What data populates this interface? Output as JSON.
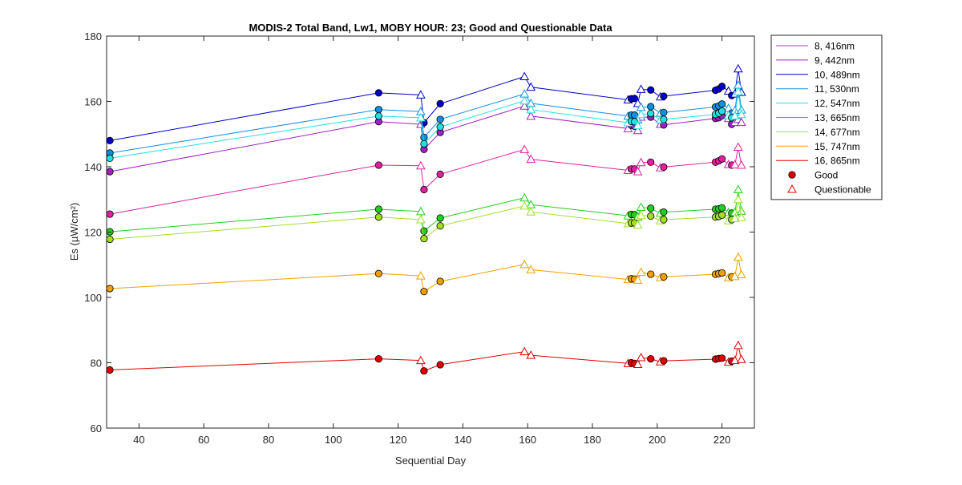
{
  "chart_data": {
    "type": "line",
    "title": "MODIS-2 Total Band,  Lw1, MOBY HOUR: 23;  Good and Questionable Data",
    "xlabel": "Sequential Day",
    "ylabel": "Es (µW/cm²)",
    "xlim": [
      30,
      230
    ],
    "ylim": [
      60,
      180
    ],
    "xticks": [
      40,
      60,
      80,
      100,
      120,
      140,
      160,
      180,
      200,
      220
    ],
    "yticks": [
      60,
      80,
      100,
      120,
      140,
      160,
      180
    ],
    "grid": false,
    "legend_position": "outside-right-top",
    "marker_legend": [
      {
        "label": "Good",
        "marker": "circle",
        "color": "#e00000"
      },
      {
        "label": "Questionable",
        "marker": "triangle",
        "color": "#e00000"
      }
    ],
    "x": [
      31,
      114,
      127,
      128,
      133,
      159,
      161,
      191,
      192,
      193,
      194,
      195,
      198,
      201,
      202,
      218,
      219,
      220,
      222,
      223,
      224,
      225,
      226
    ],
    "quality": [
      "G",
      "G",
      "Q",
      "G",
      "G",
      "Q",
      "Q",
      "Q",
      "G",
      "G",
      "Q",
      "Q",
      "G",
      "Q",
      "G",
      "G",
      "G",
      "G",
      "Q",
      "G",
      "Q",
      "Q",
      "Q"
    ],
    "series": [
      {
        "name": "8, 416nm",
        "color": "#e020a0",
        "values": [
          125.5,
          140.5,
          140.3,
          133.0,
          137.7,
          145.3,
          142.3,
          138.9,
          139.3,
          139.3,
          138.5,
          141.3,
          141.4,
          139.7,
          139.9,
          141.4,
          141.8,
          142.4,
          140.7,
          140.5,
          140.6,
          146.0,
          140.5
        ]
      },
      {
        "name": "9, 442nm",
        "color": "#a020c0",
        "values": [
          138.5,
          153.8,
          153.0,
          145.3,
          150.5,
          158.6,
          155.5,
          151.7,
          152.7,
          152.4,
          151.1,
          155.2,
          155.2,
          153.0,
          152.8,
          154.8,
          155.0,
          155.6,
          154.8,
          153.0,
          153.6,
          154.5,
          153.6
        ]
      },
      {
        "name": "10, 489nm",
        "color": "#0000c8",
        "values": [
          148.0,
          162.6,
          162.0,
          153.5,
          159.3,
          167.6,
          164.4,
          160.5,
          160.8,
          160.9,
          159.4,
          163.7,
          163.5,
          161.4,
          161.6,
          163.4,
          163.8,
          164.6,
          163.2,
          161.8,
          162.3,
          170.0,
          162.8
        ]
      },
      {
        "name": "11, 530nm",
        "color": "#1090e0",
        "values": [
          144.2,
          157.5,
          156.9,
          149.0,
          154.5,
          162.3,
          159.4,
          155.5,
          155.8,
          155.8,
          154.4,
          158.2,
          158.4,
          156.4,
          156.6,
          158.3,
          158.6,
          159.2,
          157.9,
          156.4,
          157.2,
          165.0,
          157.4
        ]
      },
      {
        "name": "12, 547nm",
        "color": "#20e0e0",
        "values": [
          142.6,
          155.5,
          155.0,
          147.0,
          152.2,
          160.2,
          157.5,
          153.5,
          153.9,
          153.8,
          152.6,
          156.0,
          156.3,
          154.4,
          154.5,
          156.0,
          156.4,
          157.0,
          155.7,
          155.0,
          155.6,
          163.0,
          156.0
        ]
      },
      {
        "name": "13, 665nm",
        "color": "#20d020",
        "values": [
          120.1,
          127.0,
          126.3,
          120.3,
          124.3,
          130.5,
          128.4,
          125.0,
          125.4,
          125.3,
          124.6,
          127.6,
          127.3,
          125.8,
          126.1,
          127.0,
          127.1,
          127.4,
          126.0,
          125.8,
          126.0,
          133.0,
          126.4
        ]
      },
      {
        "name": "14, 677nm",
        "color": "#a0e020",
        "values": [
          117.8,
          124.6,
          123.8,
          118.0,
          121.9,
          128.0,
          126.2,
          122.6,
          122.8,
          122.8,
          122.2,
          125.1,
          124.9,
          123.5,
          123.8,
          124.6,
          124.8,
          125.2,
          123.5,
          123.8,
          124.2,
          130.0,
          124.5
        ]
      },
      {
        "name": "15, 747nm",
        "color": "#f0a000",
        "values": [
          102.7,
          107.3,
          106.6,
          101.8,
          104.9,
          110.1,
          108.5,
          105.5,
          105.7,
          105.6,
          105.3,
          107.7,
          107.1,
          106.1,
          106.3,
          107.1,
          107.3,
          107.5,
          106.0,
          106.3,
          106.4,
          112.3,
          107.0
        ]
      },
      {
        "name": "16, 865nm",
        "color": "#e00000",
        "values": [
          77.8,
          81.2,
          80.7,
          77.5,
          79.4,
          83.4,
          82.3,
          79.8,
          80.0,
          79.8,
          79.5,
          81.6,
          81.2,
          80.3,
          80.6,
          81.1,
          81.3,
          81.4,
          80.2,
          80.5,
          80.7,
          85.3,
          81.0
        ]
      }
    ]
  }
}
